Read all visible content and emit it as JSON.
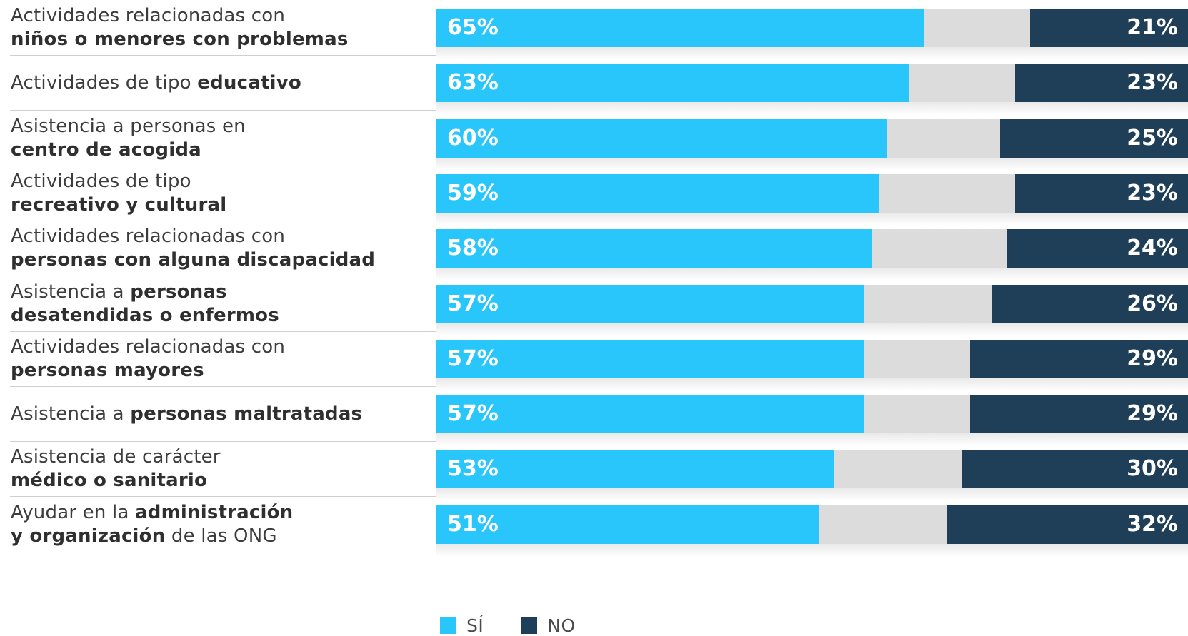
{
  "chart_data": {
    "type": "bar",
    "orientation": "horizontal",
    "stacked": true,
    "categories": [
      {
        "parts": [
          {
            "t": "Actividades relacionadas con",
            "b": false
          },
          {
            "t": "\n",
            "b": false
          },
          {
            "t": "niños o menores con problemas",
            "b": true
          }
        ]
      },
      {
        "parts": [
          {
            "t": "Actividades de tipo ",
            "b": false
          },
          {
            "t": "educativo",
            "b": true
          }
        ]
      },
      {
        "parts": [
          {
            "t": "Asistencia a personas en",
            "b": false
          },
          {
            "t": "\n",
            "b": false
          },
          {
            "t": "centro de acogida",
            "b": true
          }
        ]
      },
      {
        "parts": [
          {
            "t": "Actividades de tipo",
            "b": false
          },
          {
            "t": "\n",
            "b": false
          },
          {
            "t": "recreativo y cultural",
            "b": true
          }
        ]
      },
      {
        "parts": [
          {
            "t": "Actividades relacionadas con",
            "b": false
          },
          {
            "t": "\n",
            "b": false
          },
          {
            "t": "personas con alguna discapacidad",
            "b": true
          }
        ]
      },
      {
        "parts": [
          {
            "t": "Asistencia a ",
            "b": false
          },
          {
            "t": "personas",
            "b": true
          },
          {
            "t": "\n",
            "b": false
          },
          {
            "t": "desatendidas o enfermos",
            "b": true
          }
        ]
      },
      {
        "parts": [
          {
            "t": "Actividades relacionadas con",
            "b": false
          },
          {
            "t": "\n",
            "b": false
          },
          {
            "t": "personas mayores",
            "b": true
          }
        ]
      },
      {
        "parts": [
          {
            "t": "Asistencia a ",
            "b": false
          },
          {
            "t": "personas maltratadas",
            "b": true
          }
        ]
      },
      {
        "parts": [
          {
            "t": "Asistencia de carácter",
            "b": false
          },
          {
            "t": "\n",
            "b": false
          },
          {
            "t": "médico o sanitario",
            "b": true
          }
        ]
      },
      {
        "parts": [
          {
            "t": "Ayudar en la ",
            "b": false
          },
          {
            "t": "administración",
            "b": true
          },
          {
            "t": "\n",
            "b": false
          },
          {
            "t": "y organización",
            "b": true
          },
          {
            "t": " de las ONG",
            "b": false
          }
        ]
      }
    ],
    "series": [
      {
        "name": "SÍ",
        "color": "#29c6fb",
        "values": [
          65,
          63,
          60,
          59,
          58,
          57,
          57,
          57,
          53,
          51
        ],
        "labels": [
          "65%",
          "63%",
          "60%",
          "59%",
          "58%",
          "57%",
          "57%",
          "57%",
          "53%",
          "51%"
        ]
      },
      {
        "name": "NO",
        "color": "#1f3f58",
        "values": [
          21,
          23,
          25,
          23,
          24,
          26,
          29,
          29,
          30,
          32
        ],
        "labels": [
          "21%",
          "23%",
          "25%",
          "23%",
          "24%",
          "26%",
          "29%",
          "29%",
          "30%",
          "32%"
        ]
      }
    ],
    "remainder_color": "#dcdcdc",
    "xlim": [
      0,
      100
    ],
    "legend_position": "bottom"
  }
}
